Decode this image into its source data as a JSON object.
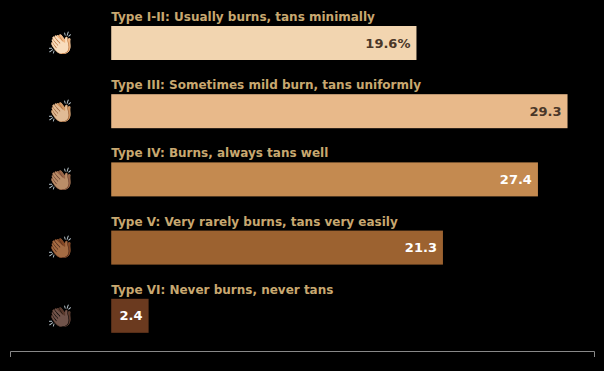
{
  "chart_data": {
    "type": "bar",
    "orientation": "horizontal",
    "categories": [
      "Type I-II: Usually burns, tans minimally",
      "Type III: Sometimes mild burn, tans uniformly",
      "Type IV: Burns, always tans well",
      "Type V: Very rarely burns, tans very easily",
      "Type VI: Never burns, never tans"
    ],
    "values": [
      19.6,
      29.3,
      27.4,
      21.3,
      2.4
    ],
    "value_labels": [
      "19.6%",
      "29.3",
      "27.4",
      "21.3",
      "2.4"
    ],
    "colors": [
      "#F2D5B0",
      "#E8B98A",
      "#C48A50",
      "#9C6230",
      "#6B3A1F"
    ],
    "annotations": [
      "👏🏻",
      "👏🏼",
      "👏🏽",
      "👏🏾",
      "👏🏿"
    ],
    "xlim": [
      -6.5,
      31
    ],
    "data_labels": true,
    "tick_labels": false,
    "grid": false
  }
}
